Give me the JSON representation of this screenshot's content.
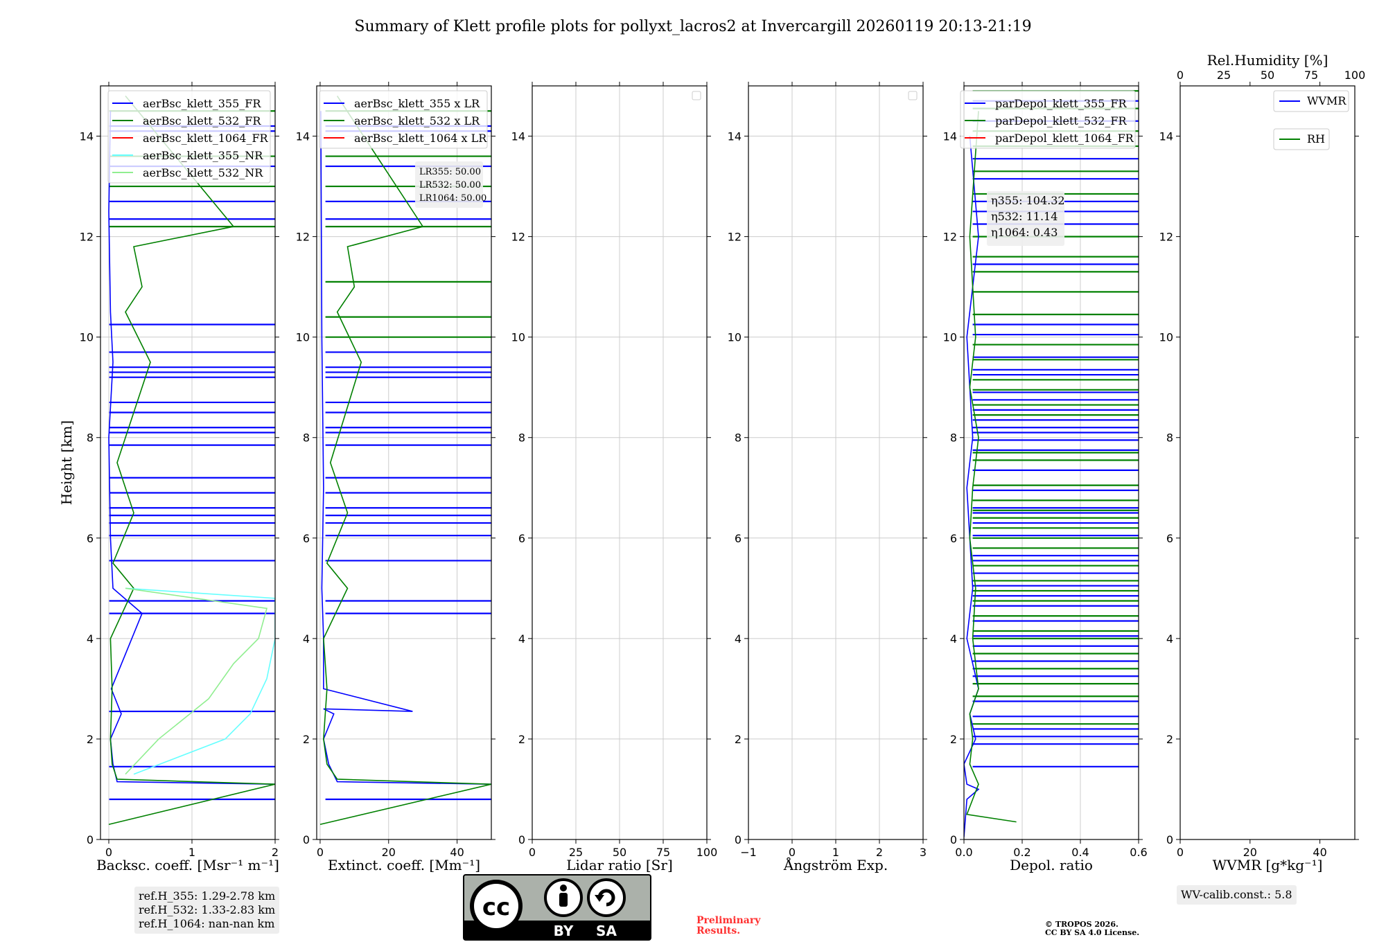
{
  "title": "Summary of Klett profile plots for pollyxt_lacros2 at Invercargill 20260119 20:13-21:19",
  "ylabel": "Height [km]",
  "colors": {
    "blue": "#0000ff",
    "green": "#008000",
    "red": "#ff0000",
    "cyan": "#66ffff",
    "lightgreen": "#90ee90",
    "grid": "#cccccc"
  },
  "chart_data": [
    {
      "type": "line",
      "id": "backscatter",
      "xlabel": "Backsc. coeff. [Msr⁻¹ m⁻¹]",
      "xlim": [
        -0.1,
        2.0
      ],
      "xticks": [
        "0",
        "1",
        "2"
      ],
      "xtick_values": [
        0,
        1,
        2
      ],
      "ylim": [
        0,
        15
      ],
      "yticks": [
        "0",
        "2",
        "4",
        "6",
        "8",
        "10",
        "12",
        "14"
      ],
      "ytick_values": [
        0,
        2,
        4,
        6,
        8,
        10,
        12,
        14
      ],
      "grid": true,
      "legend": [
        "aerBsc_klett_355_FR",
        "aerBsc_klett_532_FR",
        "aerBsc_klett_1064_FR",
        "aerBsc_klett_355_NR",
        "aerBsc_klett_532_NR"
      ],
      "legend_colors": [
        "#0000ff",
        "#008000",
        "#ff0000",
        "#66ffff",
        "#90ee90"
      ],
      "series": [
        {
          "name": "aerBsc_klett_355_FR",
          "color": "#0000ff",
          "x": [
            2.0,
            0.1,
            0.05,
            0.02,
            0.15,
            0.03,
            0.4,
            0.05,
            0.02,
            0.0,
            0.05,
            0.02,
            0.0,
            0.02
          ],
          "y": [
            1.1,
            1.15,
            1.5,
            2.0,
            2.5,
            3.0,
            4.5,
            5.0,
            6.0,
            8.0,
            9.5,
            10.5,
            12.5,
            14.5
          ]
        },
        {
          "name": "aerBsc_klett_532_FR",
          "color": "#008000",
          "x": [
            0.0,
            2.0,
            0.1,
            0.04,
            0.02,
            0.04,
            0.02,
            0.3,
            0.05,
            0.3,
            0.1,
            0.5,
            0.2,
            0.4,
            0.3,
            1.5,
            0.2
          ],
          "y": [
            0.3,
            1.1,
            1.2,
            1.5,
            2.0,
            3.0,
            4.0,
            5.0,
            5.5,
            6.5,
            7.5,
            9.5,
            10.5,
            11.0,
            11.8,
            12.2,
            14.8
          ]
        },
        {
          "name": "aerBsc_klett_355_NR",
          "color": "#66ffff",
          "x": [
            0.3,
            1.4,
            1.7,
            1.9,
            2.0,
            2.0,
            0.2
          ],
          "y": [
            1.3,
            2.0,
            2.5,
            3.2,
            4.0,
            4.8,
            5.0
          ]
        },
        {
          "name": "aerBsc_klett_532_NR",
          "color": "#90ee90",
          "x": [
            0.2,
            0.6,
            1.2,
            1.5,
            1.8,
            1.9,
            0.2
          ],
          "y": [
            1.3,
            2.0,
            2.8,
            3.5,
            4.0,
            4.6,
            5.0
          ]
        }
      ],
      "spikes": [
        {
          "color": "#0000ff",
          "heights": [
            0.8,
            1.45,
            2.55,
            4.5,
            4.75,
            5.55,
            6.05,
            6.3,
            6.45,
            6.6,
            6.9,
            7.2,
            7.85,
            8.1,
            8.2,
            8.5,
            8.7,
            9.2,
            9.3,
            9.4,
            9.7,
            10.25,
            12.35,
            12.7,
            13.4,
            14.1,
            14.2
          ],
          "to": 2.0
        },
        {
          "color": "#008000",
          "heights": [
            12.2,
            13.0,
            13.6,
            14.5
          ],
          "to": 2.0
        }
      ]
    },
    {
      "type": "line",
      "id": "extinction",
      "xlabel": "Extinct. coeff. [Mm⁻¹]",
      "xlim": [
        -1,
        50
      ],
      "xticks": [
        "0",
        "20",
        "40"
      ],
      "xtick_values": [
        0,
        20,
        40
      ],
      "ylim": [
        0,
        15
      ],
      "yticks": [
        "0",
        "2",
        "4",
        "6",
        "8",
        "10",
        "12",
        "14"
      ],
      "ytick_values": [
        0,
        2,
        4,
        6,
        8,
        10,
        12,
        14
      ],
      "grid": true,
      "legend": [
        "aerBsc_klett_355 x LR",
        "aerBsc_klett_532 x LR",
        "aerBsc_klett_1064 x LR"
      ],
      "legend_colors": [
        "#0000ff",
        "#008000",
        "#ff0000"
      ],
      "annotation": [
        "LR355: 50.00",
        "LR532: 50.00",
        "LR1064: 50.00"
      ],
      "series": [
        {
          "name": "aerBsc_klett_355 x LR",
          "color": "#0000ff",
          "x": [
            50,
            5,
            2.5,
            1,
            4,
            1,
            27,
            1,
            1,
            0.5,
            1,
            0.5,
            0.2
          ],
          "y": [
            1.1,
            1.15,
            1.5,
            2.0,
            2.5,
            2.6,
            2.55,
            3.0,
            4.0,
            5.0,
            7.0,
            10.0,
            14.5
          ]
        },
        {
          "name": "aerBsc_klett_532 x LR",
          "color": "#008000",
          "x": [
            0,
            50,
            5,
            2,
            1,
            2,
            1,
            8,
            2,
            8,
            3,
            12,
            5,
            10,
            8,
            30,
            5
          ],
          "y": [
            0.3,
            1.1,
            1.2,
            1.5,
            2.0,
            3.0,
            4.0,
            5.0,
            5.5,
            6.5,
            7.5,
            9.5,
            10.5,
            11.0,
            11.8,
            12.2,
            14.8
          ]
        }
      ],
      "spikes": [
        {
          "color": "#0000ff",
          "heights": [
            0.8,
            4.5,
            4.75,
            5.55,
            6.05,
            6.3,
            6.45,
            6.6,
            6.9,
            7.2,
            7.85,
            8.1,
            8.2,
            8.5,
            8.7,
            9.2,
            9.3,
            9.4,
            9.7,
            12.35,
            12.7,
            13.4,
            14.1,
            14.2
          ],
          "to": 50
        },
        {
          "color": "#008000",
          "heights": [
            10.0,
            10.4,
            11.1,
            12.2,
            13.0,
            13.6,
            14.5
          ],
          "to": 50
        }
      ]
    },
    {
      "type": "line",
      "id": "lidar-ratio",
      "xlabel": "Lidar ratio [Sr]",
      "xlim": [
        0,
        100
      ],
      "xticks": [
        "0",
        "25",
        "50",
        "75",
        "100"
      ],
      "xtick_values": [
        0,
        25,
        50,
        75,
        100
      ],
      "ylim": [
        0,
        15
      ],
      "yticks": [
        "0",
        "2",
        "4",
        "6",
        "8",
        "10",
        "12",
        "14"
      ],
      "ytick_values": [
        0,
        2,
        4,
        6,
        8,
        10,
        12,
        14
      ],
      "grid": true,
      "series": []
    },
    {
      "type": "line",
      "id": "angstrom",
      "xlabel": "Ångström Exp.",
      "xlim": [
        -1,
        3
      ],
      "xticks": [
        "−1",
        "0",
        "1",
        "2",
        "3"
      ],
      "xtick_values": [
        -1,
        0,
        1,
        2,
        3
      ],
      "ylim": [
        0,
        15
      ],
      "yticks": [
        "0",
        "2",
        "4",
        "6",
        "8",
        "10",
        "12",
        "14"
      ],
      "ytick_values": [
        0,
        2,
        4,
        6,
        8,
        10,
        12,
        14
      ],
      "grid": true,
      "series": []
    },
    {
      "type": "line",
      "id": "depol",
      "xlabel": "Depol. ratio",
      "xlim": [
        0,
        0.6
      ],
      "xticks": [
        "0.0",
        "0.2",
        "0.4",
        "0.6"
      ],
      "xtick_values": [
        0,
        0.2,
        0.4,
        0.6
      ],
      "ylim": [
        0,
        15
      ],
      "yticks": [
        "0",
        "2",
        "4",
        "6",
        "8",
        "10",
        "12",
        "14"
      ],
      "ytick_values": [
        0,
        2,
        4,
        6,
        8,
        10,
        12,
        14
      ],
      "grid": true,
      "legend": [
        "parDepol_klett_355_FR",
        "parDepol_klett_532_FR",
        "parDepol_klett_1064_FR"
      ],
      "legend_colors": [
        "#0000ff",
        "#008000",
        "#ff0000"
      ],
      "annotation": [
        "η355: 104.32",
        "η532: 11.14",
        "η1064: 0.43"
      ],
      "series": [
        {
          "name": "parDepol_klett_355_FR",
          "color": "#0000ff",
          "x": [
            0.0,
            0.01,
            0.05,
            0.01,
            0.0,
            0.04,
            0.02,
            0.05,
            0.01,
            0.03,
            0.02,
            0.01,
            0.03,
            0.02,
            0.01,
            0.05,
            0.02
          ],
          "y": [
            0.05,
            0.8,
            1.0,
            1.1,
            1.5,
            2.0,
            2.5,
            3.0,
            4.0,
            5.0,
            6.0,
            7.0,
            8.0,
            9.0,
            10.0,
            12.0,
            14.0
          ]
        },
        {
          "name": "parDepol_klett_532_FR",
          "color": "#008000",
          "x": [
            0.18,
            0.01,
            0.05,
            0.02,
            0.03,
            0.02,
            0.05,
            0.03,
            0.04,
            0.02,
            0.03,
            0.05,
            0.02,
            0.04,
            0.03,
            0.02,
            0.05
          ],
          "y": [
            0.35,
            0.5,
            1.1,
            1.5,
            2.0,
            2.5,
            3.0,
            4.0,
            5.0,
            6.0,
            7.0,
            8.0,
            9.0,
            10.0,
            11.0,
            12.0,
            14.5
          ]
        }
      ],
      "spikes": [
        {
          "color": "#0000ff",
          "heights": [
            1.45,
            1.9,
            2.05,
            2.2,
            2.45,
            2.75,
            3.25,
            3.55,
            3.85,
            4.05,
            4.35,
            4.65,
            4.85,
            5.05,
            5.3,
            5.55,
            5.65,
            6.05,
            6.3,
            6.5,
            6.6,
            6.95,
            7.35,
            7.75,
            7.95,
            8.1,
            8.2,
            8.35,
            8.55,
            8.75,
            8.9,
            9.25,
            9.35,
            9.6,
            10.05,
            10.25,
            11.45,
            12.25,
            12.5,
            12.7,
            13.15,
            13.55,
            14.3,
            14.7
          ],
          "to": 0.6
        },
        {
          "color": "#008000",
          "heights": [
            2.3,
            2.85,
            3.1,
            3.4,
            3.7,
            4.0,
            4.15,
            4.45,
            4.75,
            4.95,
            5.15,
            5.45,
            5.8,
            6.0,
            6.2,
            6.4,
            6.55,
            6.75,
            7.05,
            7.55,
            7.7,
            8.45,
            8.65,
            8.95,
            9.15,
            9.55,
            9.85,
            10.45,
            10.9,
            11.3,
            11.6,
            12.0,
            12.85,
            13.3,
            13.8,
            14.1,
            14.55,
            14.9
          ],
          "to": 0.6
        }
      ]
    },
    {
      "type": "line",
      "id": "wvmr",
      "xlabel": "WVMR [g*kg⁻¹]",
      "xlim": [
        0,
        50
      ],
      "xticks": [
        "0",
        "20",
        "40"
      ],
      "xtick_values": [
        0,
        20,
        40
      ],
      "top_axis_label": "Rel.Humidity [%]",
      "top_xlim": [
        0,
        100
      ],
      "top_xticks": [
        "0",
        "25",
        "50",
        "75",
        "100"
      ],
      "top_xtick_values": [
        0,
        25,
        50,
        75,
        100
      ],
      "ylim": [
        0,
        15
      ],
      "yticks": [
        "0",
        "2",
        "4",
        "6",
        "8",
        "10",
        "12",
        "14"
      ],
      "ytick_values": [
        0,
        2,
        4,
        6,
        8,
        10,
        12,
        14
      ],
      "grid": false,
      "legend": [
        "WVMR",
        "RH"
      ],
      "legend_colors": [
        "#0000ff",
        "#008000"
      ],
      "series": []
    }
  ],
  "info": {
    "refh": [
      "ref.H_355: 1.29-2.78 km",
      "ref.H_532: 1.33-2.83 km",
      "ref.H_1064: nan-nan km"
    ],
    "wv_calib": "WV-calib.const.: 5.8",
    "preliminary": [
      "Preliminary",
      "Results."
    ],
    "copyright": [
      "© TROPOS 2026.",
      "CC BY SA 4.0 License."
    ],
    "cc_by": "BY",
    "cc_sa": "SA"
  }
}
